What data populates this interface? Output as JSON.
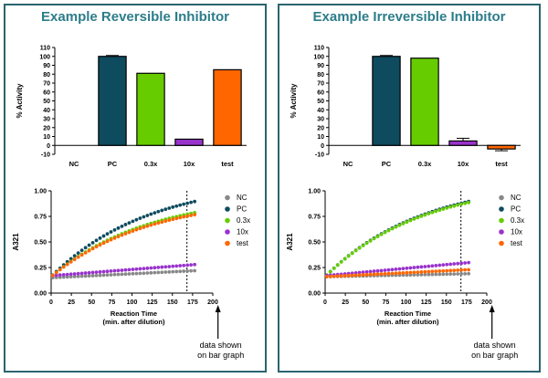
{
  "chart_data": [
    {
      "id": "left",
      "panel_title": "Example Reversible Inhibitor",
      "bar": {
        "type": "bar",
        "ylabel": "% Activity",
        "ylim": [
          -10,
          110
        ],
        "yticks": [
          -10,
          0,
          10,
          20,
          30,
          40,
          50,
          60,
          70,
          80,
          90,
          100,
          110
        ],
        "categories": [
          "NC",
          "PC",
          "0.3x",
          "10x",
          "test"
        ],
        "values": [
          0,
          100,
          81,
          7,
          85
        ],
        "errors": [
          0,
          1,
          0,
          0,
          0
        ],
        "colors": [
          "#ffffff",
          "#0e4b5f",
          "#66cc00",
          "#9933cc",
          "#ff6600"
        ]
      },
      "line": {
        "type": "scatter",
        "ylabel": "A321",
        "xlabel": "Reaction Time",
        "xlabel2": "(min. after dilution)",
        "xlim": [
          0,
          200
        ],
        "ylim": [
          0,
          1
        ],
        "xticks": [
          0,
          25,
          50,
          75,
          100,
          125,
          150,
          175,
          200
        ],
        "yticks": [
          "0.00",
          "0.25",
          "0.50",
          "0.75",
          "1.00"
        ],
        "marker_x": 168,
        "series": [
          {
            "name": "NC",
            "color": "#888888",
            "y0": 0.15,
            "y1": 0.22,
            "shape": "linear"
          },
          {
            "name": "PC",
            "color": "#0e4b5f",
            "y0": 0.16,
            "y1": 0.9,
            "shape": "curve"
          },
          {
            "name": "0.3x",
            "color": "#66cc00",
            "y0": 0.16,
            "y1": 0.79,
            "shape": "curve"
          },
          {
            "name": "10x",
            "color": "#9933cc",
            "y0": 0.17,
            "y1": 0.28,
            "shape": "linear"
          },
          {
            "name": "test",
            "color": "#ff6600",
            "y0": 0.16,
            "y1": 0.77,
            "shape": "curve"
          }
        ]
      },
      "annotation": [
        "data shown",
        "on bar graph"
      ]
    },
    {
      "id": "right",
      "panel_title": "Example Irreversible Inhibitor",
      "bar": {
        "type": "bar",
        "ylabel": "% Activity",
        "ylim": [
          -10,
          110
        ],
        "yticks": [
          -10,
          0,
          10,
          20,
          30,
          40,
          50,
          60,
          70,
          80,
          90,
          100,
          110
        ],
        "categories": [
          "NC",
          "PC",
          "0.3x",
          "10x",
          "test"
        ],
        "values": [
          0,
          100,
          98,
          5,
          -4
        ],
        "errors": [
          0,
          1,
          0,
          3,
          2
        ],
        "colors": [
          "#ffffff",
          "#0e4b5f",
          "#66cc00",
          "#9933cc",
          "#ff6600"
        ]
      },
      "line": {
        "type": "scatter",
        "ylabel": "A321",
        "xlabel": "Reaction Time",
        "xlabel2": "(min. after dilution)",
        "xlim": [
          0,
          200
        ],
        "ylim": [
          0,
          1
        ],
        "xticks": [
          0,
          25,
          50,
          75,
          100,
          125,
          150,
          175,
          200
        ],
        "yticks": [
          "0.00",
          "0.25",
          "0.50",
          "0.75",
          "1.00"
        ],
        "marker_x": 168,
        "series": [
          {
            "name": "NC",
            "color": "#888888",
            "y0": 0.16,
            "y1": 0.19,
            "shape": "linear"
          },
          {
            "name": "PC",
            "color": "#0e4b5f",
            "y0": 0.16,
            "y1": 0.9,
            "shape": "curve"
          },
          {
            "name": "0.3x",
            "color": "#66cc00",
            "y0": 0.16,
            "y1": 0.89,
            "shape": "curve"
          },
          {
            "name": "10x",
            "color": "#9933cc",
            "y0": 0.17,
            "y1": 0.3,
            "shape": "linear"
          },
          {
            "name": "test",
            "color": "#ff6600",
            "y0": 0.16,
            "y1": 0.23,
            "shape": "linear"
          }
        ]
      },
      "annotation": [
        "data shown",
        "on bar graph"
      ]
    }
  ]
}
